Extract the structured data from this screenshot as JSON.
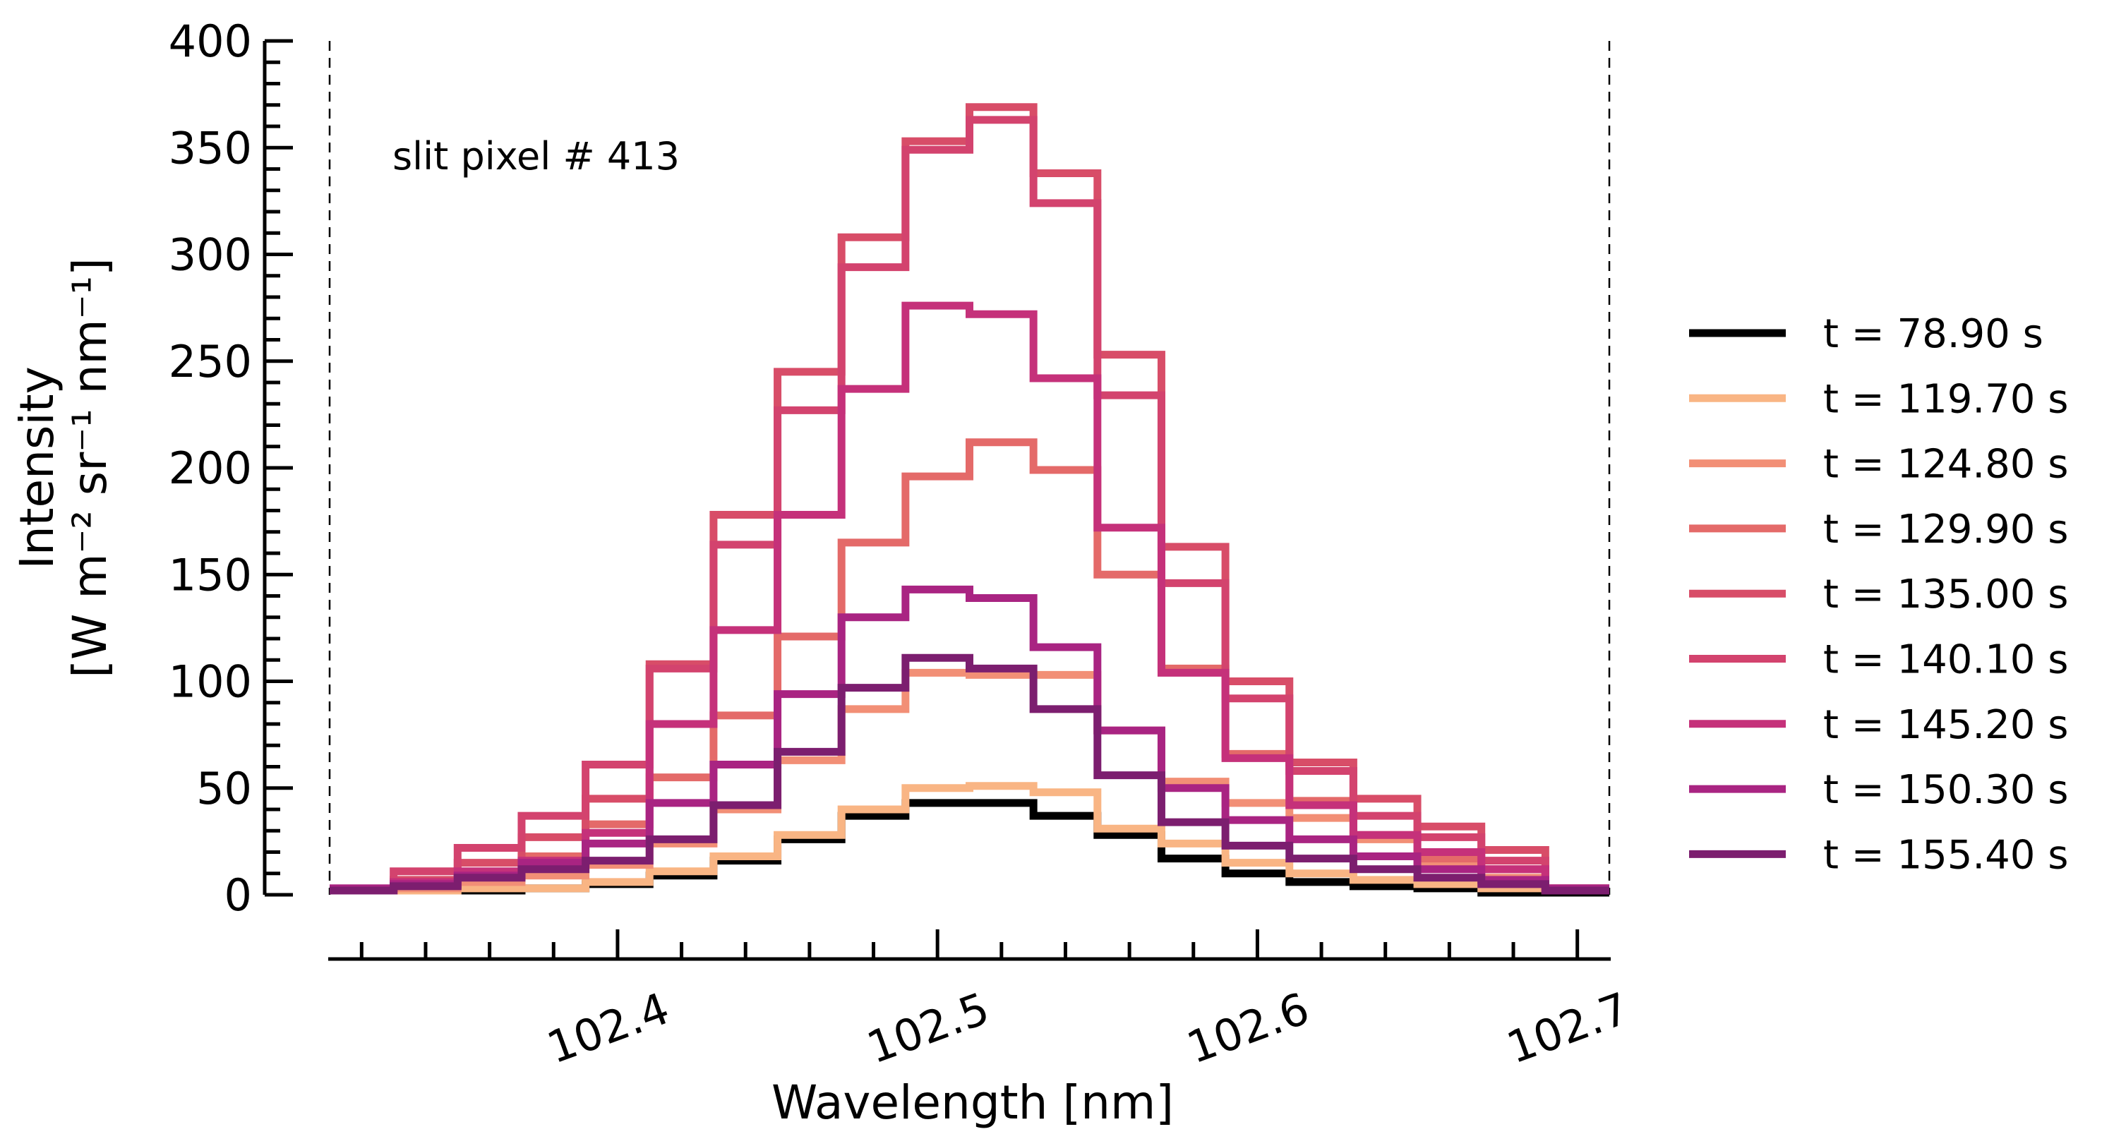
{
  "chart_data": {
    "type": "line",
    "style": "step",
    "xlabel": "Wavelength [nm]",
    "ylabel": [
      "Intensity",
      "[W m⁻² sr⁻¹ nm⁻¹]"
    ],
    "annotation": "slit pixel # 413",
    "xlim": [
      102.31,
      102.71
    ],
    "ylim": [
      0,
      400
    ],
    "x_ticks": [
      "102.4",
      "102.5",
      "102.6",
      "102.7"
    ],
    "y_ticks": [
      "0",
      "50",
      "100",
      "150",
      "200",
      "250",
      "300",
      "350",
      "400"
    ],
    "grid": false,
    "legend_position": "right",
    "vertical_guides": [
      102.31,
      102.71
    ],
    "bin_edges": [
      102.31,
      102.33,
      102.35,
      102.37,
      102.39,
      102.41,
      102.43,
      102.45,
      102.47,
      102.49,
      102.51,
      102.53,
      102.55,
      102.57,
      102.59,
      102.61,
      102.63,
      102.65,
      102.67,
      102.69,
      102.71
    ],
    "series": [
      {
        "name": "t = 78.90 s",
        "color": "#000000",
        "values": [
          2,
          2,
          2,
          3,
          5,
          9,
          16,
          26,
          37,
          43,
          43,
          37,
          28,
          17,
          10,
          6,
          4,
          3,
          1,
          1
        ]
      },
      {
        "name": "t = 119.70 s",
        "color": "#f9b584",
        "values": [
          2,
          2,
          3,
          3,
          6,
          11,
          18,
          28,
          40,
          50,
          51,
          48,
          31,
          24,
          15,
          10,
          7,
          5,
          3,
          2
        ]
      },
      {
        "name": "t = 124.80 s",
        "color": "#f28f76",
        "values": [
          2,
          3,
          6,
          9,
          14,
          24,
          40,
          63,
          87,
          104,
          103,
          103,
          77,
          53,
          43,
          36,
          26,
          14,
          8,
          3
        ]
      },
      {
        "name": "t = 129.90 s",
        "color": "#e46a69",
        "values": [
          2,
          4,
          9,
          18,
          33,
          55,
          84,
          121,
          165,
          196,
          212,
          199,
          150,
          106,
          66,
          44,
          28,
          17,
          12,
          3
        ]
      },
      {
        "name": "t = 135.00 s",
        "color": "#d84d68",
        "values": [
          2,
          7,
          15,
          27,
          45,
          108,
          178,
          245,
          308,
          353,
          369,
          338,
          253,
          163,
          100,
          62,
          45,
          32,
          21,
          3
        ]
      },
      {
        "name": "t = 140.10 s",
        "color": "#d3436e",
        "values": [
          2,
          11,
          22,
          37,
          61,
          106,
          164,
          227,
          294,
          349,
          363,
          324,
          234,
          146,
          92,
          58,
          37,
          27,
          16,
          2
        ]
      },
      {
        "name": "t = 145.20 s",
        "color": "#c5317a",
        "values": [
          3,
          6,
          11,
          16,
          29,
          80,
          124,
          178,
          237,
          276,
          272,
          242,
          172,
          104,
          64,
          42,
          28,
          20,
          12,
          3
        ]
      },
      {
        "name": "t = 150.30 s",
        "color": "#a92482",
        "values": [
          3,
          5,
          9,
          15,
          24,
          43,
          61,
          94,
          130,
          143,
          139,
          116,
          77,
          50,
          35,
          26,
          18,
          12,
          7,
          3
        ]
      },
      {
        "name": "t = 155.40 s",
        "color": "#7c1e6f",
        "values": [
          2,
          4,
          8,
          12,
          16,
          26,
          42,
          67,
          97,
          111,
          106,
          87,
          56,
          34,
          23,
          17,
          12,
          8,
          5,
          2
        ]
      }
    ]
  }
}
